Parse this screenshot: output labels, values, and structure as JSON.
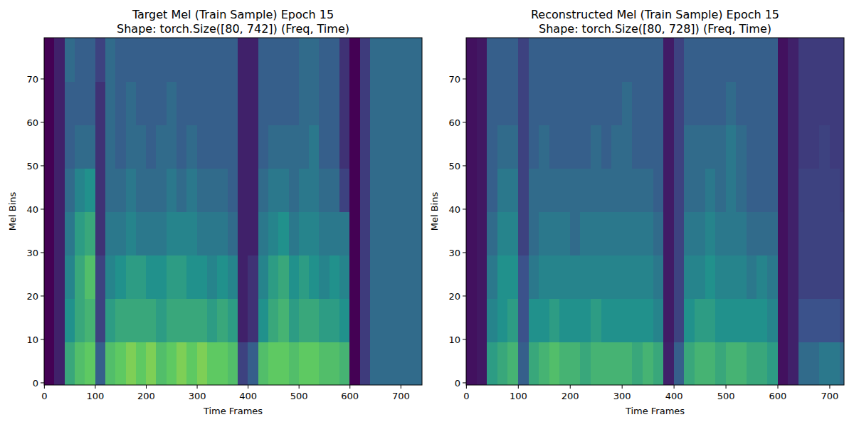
{
  "chart_data": [
    {
      "type": "heatmap",
      "title": "Target Mel (Train Sample) Epoch 15",
      "subtitle": "Shape: torch.Size([80, 742]) (Freq, Time)",
      "xlabel": "Time Frames",
      "ylabel": "Mel Bins",
      "xlim": [
        -0.5,
        741.5
      ],
      "ylim": [
        -0.5,
        79.5
      ],
      "xticks": [
        0,
        100,
        200,
        300,
        400,
        500,
        600,
        700
      ],
      "yticks": [
        0,
        10,
        20,
        30,
        40,
        50,
        60,
        70
      ],
      "color_range": [
        0,
        1
      ],
      "x_edges": [
        -0.5,
        19.5,
        39.5,
        59.5,
        79.5,
        99.5,
        119.5,
        139.5,
        159.5,
        179.5,
        199.5,
        219.5,
        239.5,
        259.5,
        279.5,
        299.5,
        319.5,
        339.5,
        359.5,
        379.5,
        399.5,
        419.5,
        439.5,
        459.5,
        479.5,
        499.5,
        519.5,
        539.5,
        559.5,
        579.5,
        599.5,
        619.5,
        639.5,
        659.5,
        679.5,
        699.5,
        719.5,
        739.5,
        741.5
      ],
      "y_edges": [
        -0.5,
        9.5,
        19.5,
        29.5,
        39.5,
        49.5,
        59.5,
        69.5,
        79.5
      ],
      "cells": [
        [
          0,
          0,
          0,
          0,
          0,
          0,
          0,
          0
        ],
        [
          0.1,
          0.1,
          0.1,
          0.1,
          0.1,
          0.1,
          0.1,
          0.1
        ],
        [
          0.6,
          0.5,
          0.45,
          0.4,
          0.35,
          0.3,
          0.3,
          0.35
        ],
        [
          0.7,
          0.6,
          0.6,
          0.55,
          0.45,
          0.35,
          0.3,
          0.3
        ],
        [
          0.75,
          0.65,
          0.7,
          0.6,
          0.5,
          0.35,
          0.3,
          0.3
        ],
        [
          0.3,
          0.2,
          0.2,
          0.15,
          0.15,
          0.15,
          0.15,
          0.2
        ],
        [
          0.7,
          0.55,
          0.45,
          0.4,
          0.35,
          0.35,
          0.35,
          0.35
        ],
        [
          0.75,
          0.6,
          0.5,
          0.4,
          0.35,
          0.3,
          0.3,
          0.3
        ],
        [
          0.8,
          0.6,
          0.55,
          0.45,
          0.4,
          0.35,
          0.35,
          0.3
        ],
        [
          0.75,
          0.6,
          0.55,
          0.4,
          0.35,
          0.35,
          0.3,
          0.3
        ],
        [
          0.8,
          0.6,
          0.5,
          0.4,
          0.35,
          0.3,
          0.3,
          0.3
        ],
        [
          0.7,
          0.55,
          0.5,
          0.4,
          0.35,
          0.35,
          0.3,
          0.3
        ],
        [
          0.75,
          0.6,
          0.55,
          0.45,
          0.4,
          0.35,
          0.35,
          0.3
        ],
        [
          0.8,
          0.6,
          0.55,
          0.45,
          0.35,
          0.3,
          0.3,
          0.3
        ],
        [
          0.75,
          0.6,
          0.5,
          0.45,
          0.4,
          0.35,
          0.3,
          0.3
        ],
        [
          0.8,
          0.6,
          0.5,
          0.4,
          0.35,
          0.3,
          0.3,
          0.3
        ],
        [
          0.75,
          0.55,
          0.45,
          0.4,
          0.35,
          0.3,
          0.3,
          0.3
        ],
        [
          0.75,
          0.6,
          0.5,
          0.4,
          0.35,
          0.3,
          0.3,
          0.3
        ],
        [
          0.7,
          0.55,
          0.45,
          0.35,
          0.3,
          0.3,
          0.3,
          0.3
        ],
        [
          0.2,
          0.1,
          0.1,
          0.1,
          0.1,
          0.1,
          0.1,
          0.1
        ],
        [
          0.3,
          0.15,
          0.15,
          0.1,
          0.1,
          0.1,
          0.1,
          0.1
        ],
        [
          0.7,
          0.5,
          0.45,
          0.4,
          0.35,
          0.3,
          0.3,
          0.3
        ],
        [
          0.75,
          0.6,
          0.55,
          0.45,
          0.4,
          0.35,
          0.3,
          0.3
        ],
        [
          0.75,
          0.65,
          0.6,
          0.5,
          0.4,
          0.35,
          0.3,
          0.3
        ],
        [
          0.7,
          0.55,
          0.5,
          0.4,
          0.35,
          0.35,
          0.3,
          0.3
        ],
        [
          0.75,
          0.6,
          0.55,
          0.45,
          0.4,
          0.35,
          0.35,
          0.35
        ],
        [
          0.75,
          0.6,
          0.5,
          0.45,
          0.4,
          0.4,
          0.35,
          0.35
        ],
        [
          0.7,
          0.55,
          0.45,
          0.4,
          0.35,
          0.3,
          0.3,
          0.3
        ],
        [
          0.7,
          0.55,
          0.5,
          0.4,
          0.35,
          0.3,
          0.3,
          0.3
        ],
        [
          0.65,
          0.5,
          0.45,
          0.4,
          0.2,
          0.15,
          0.15,
          0.15
        ],
        [
          0,
          0,
          0,
          0,
          0,
          0,
          0,
          0
        ],
        [
          0.18,
          0.18,
          0.18,
          0.18,
          0.18,
          0.18,
          0.18,
          0.18
        ],
        [
          0.35,
          0.35,
          0.35,
          0.35,
          0.35,
          0.35,
          0.35,
          0.35
        ],
        [
          0.35,
          0.35,
          0.35,
          0.35,
          0.35,
          0.35,
          0.35,
          0.35
        ],
        [
          0.35,
          0.35,
          0.35,
          0.35,
          0.35,
          0.35,
          0.35,
          0.35
        ],
        [
          0.35,
          0.35,
          0.35,
          0.35,
          0.35,
          0.35,
          0.35,
          0.35
        ],
        [
          0.35,
          0.35,
          0.35,
          0.35,
          0.35,
          0.35,
          0.35,
          0.35
        ],
        [
          0.35,
          0.35,
          0.35,
          0.35,
          0.35,
          0.35,
          0.35,
          0.35
        ]
      ]
    },
    {
      "type": "heatmap",
      "title": "Reconstructed Mel (Train Sample) Epoch 15",
      "subtitle": "Shape: torch.Size([80, 728]) (Freq, Time)",
      "xlabel": "Time Frames",
      "ylabel": "Mel Bins",
      "xlim": [
        -0.5,
        727.5
      ],
      "ylim": [
        -0.5,
        79.5
      ],
      "xticks": [
        0,
        100,
        200,
        300,
        400,
        500,
        600,
        700
      ],
      "yticks": [
        0,
        10,
        20,
        30,
        40,
        50,
        60,
        70
      ],
      "color_range": [
        0,
        1
      ],
      "x_edges": [
        -0.5,
        19.5,
        39.5,
        59.5,
        79.5,
        99.5,
        119.5,
        139.5,
        159.5,
        179.5,
        199.5,
        219.5,
        239.5,
        259.5,
        279.5,
        299.5,
        319.5,
        339.5,
        359.5,
        379.5,
        399.5,
        419.5,
        439.5,
        459.5,
        479.5,
        499.5,
        519.5,
        539.5,
        559.5,
        579.5,
        599.5,
        619.5,
        639.5,
        659.5,
        679.5,
        699.5,
        719.5,
        727.5
      ],
      "y_edges": [
        -0.5,
        9.5,
        19.5,
        29.5,
        39.5,
        49.5,
        59.5,
        69.5,
        79.5
      ],
      "cells": [
        [
          0.05,
          0.05,
          0.05,
          0.05,
          0.05,
          0.05,
          0.05,
          0.05
        ],
        [
          0.07,
          0.07,
          0.07,
          0.07,
          0.07,
          0.07,
          0.07,
          0.07
        ],
        [
          0.55,
          0.45,
          0.4,
          0.35,
          0.3,
          0.3,
          0.3,
          0.3
        ],
        [
          0.6,
          0.5,
          0.5,
          0.45,
          0.4,
          0.35,
          0.3,
          0.3
        ],
        [
          0.65,
          0.55,
          0.5,
          0.45,
          0.4,
          0.35,
          0.3,
          0.3
        ],
        [
          0.3,
          0.25,
          0.25,
          0.2,
          0.2,
          0.2,
          0.2,
          0.2
        ],
        [
          0.6,
          0.5,
          0.4,
          0.35,
          0.35,
          0.3,
          0.3,
          0.3
        ],
        [
          0.65,
          0.5,
          0.45,
          0.4,
          0.35,
          0.35,
          0.3,
          0.3
        ],
        [
          0.7,
          0.55,
          0.45,
          0.4,
          0.35,
          0.3,
          0.3,
          0.3
        ],
        [
          0.65,
          0.5,
          0.45,
          0.4,
          0.35,
          0.3,
          0.3,
          0.3
        ],
        [
          0.65,
          0.5,
          0.45,
          0.35,
          0.35,
          0.3,
          0.3,
          0.3
        ],
        [
          0.6,
          0.5,
          0.45,
          0.4,
          0.35,
          0.3,
          0.3,
          0.3
        ],
        [
          0.65,
          0.55,
          0.45,
          0.4,
          0.35,
          0.35,
          0.3,
          0.3
        ],
        [
          0.65,
          0.5,
          0.45,
          0.4,
          0.35,
          0.3,
          0.3,
          0.3
        ],
        [
          0.65,
          0.5,
          0.45,
          0.4,
          0.35,
          0.35,
          0.3,
          0.3
        ],
        [
          0.65,
          0.5,
          0.45,
          0.4,
          0.35,
          0.35,
          0.35,
          0.3
        ],
        [
          0.6,
          0.5,
          0.45,
          0.4,
          0.35,
          0.3,
          0.3,
          0.3
        ],
        [
          0.65,
          0.5,
          0.45,
          0.4,
          0.35,
          0.3,
          0.3,
          0.3
        ],
        [
          0.6,
          0.45,
          0.4,
          0.35,
          0.3,
          0.3,
          0.3,
          0.3
        ],
        [
          0.1,
          0.08,
          0.08,
          0.08,
          0.08,
          0.08,
          0.08,
          0.08
        ],
        [
          0.3,
          0.2,
          0.2,
          0.2,
          0.2,
          0.2,
          0.2,
          0.2
        ],
        [
          0.6,
          0.5,
          0.45,
          0.4,
          0.35,
          0.35,
          0.3,
          0.3
        ],
        [
          0.65,
          0.55,
          0.45,
          0.4,
          0.35,
          0.35,
          0.3,
          0.3
        ],
        [
          0.65,
          0.55,
          0.5,
          0.45,
          0.4,
          0.35,
          0.3,
          0.3
        ],
        [
          0.6,
          0.5,
          0.45,
          0.4,
          0.35,
          0.35,
          0.3,
          0.3
        ],
        [
          0.65,
          0.5,
          0.45,
          0.4,
          0.4,
          0.4,
          0.35,
          0.3
        ],
        [
          0.65,
          0.5,
          0.45,
          0.4,
          0.35,
          0.35,
          0.3,
          0.3
        ],
        [
          0.6,
          0.5,
          0.4,
          0.35,
          0.3,
          0.3,
          0.3,
          0.3
        ],
        [
          0.6,
          0.5,
          0.45,
          0.35,
          0.3,
          0.3,
          0.3,
          0.3
        ],
        [
          0.55,
          0.45,
          0.4,
          0.35,
          0.3,
          0.3,
          0.3,
          0.3
        ],
        [
          0.05,
          0.05,
          0.05,
          0.05,
          0.05,
          0.05,
          0.05,
          0.05
        ],
        [
          0.1,
          0.1,
          0.1,
          0.1,
          0.1,
          0.1,
          0.1,
          0.1
        ],
        [
          0.35,
          0.25,
          0.2,
          0.2,
          0.2,
          0.18,
          0.18,
          0.18
        ],
        [
          0.35,
          0.25,
          0.2,
          0.2,
          0.2,
          0.18,
          0.18,
          0.18
        ],
        [
          0.4,
          0.25,
          0.2,
          0.2,
          0.2,
          0.2,
          0.18,
          0.18
        ],
        [
          0.4,
          0.25,
          0.2,
          0.2,
          0.2,
          0.18,
          0.18,
          0.18
        ],
        [
          0.35,
          0.22,
          0.2,
          0.2,
          0.18,
          0.18,
          0.18,
          0.18
        ]
      ]
    }
  ]
}
